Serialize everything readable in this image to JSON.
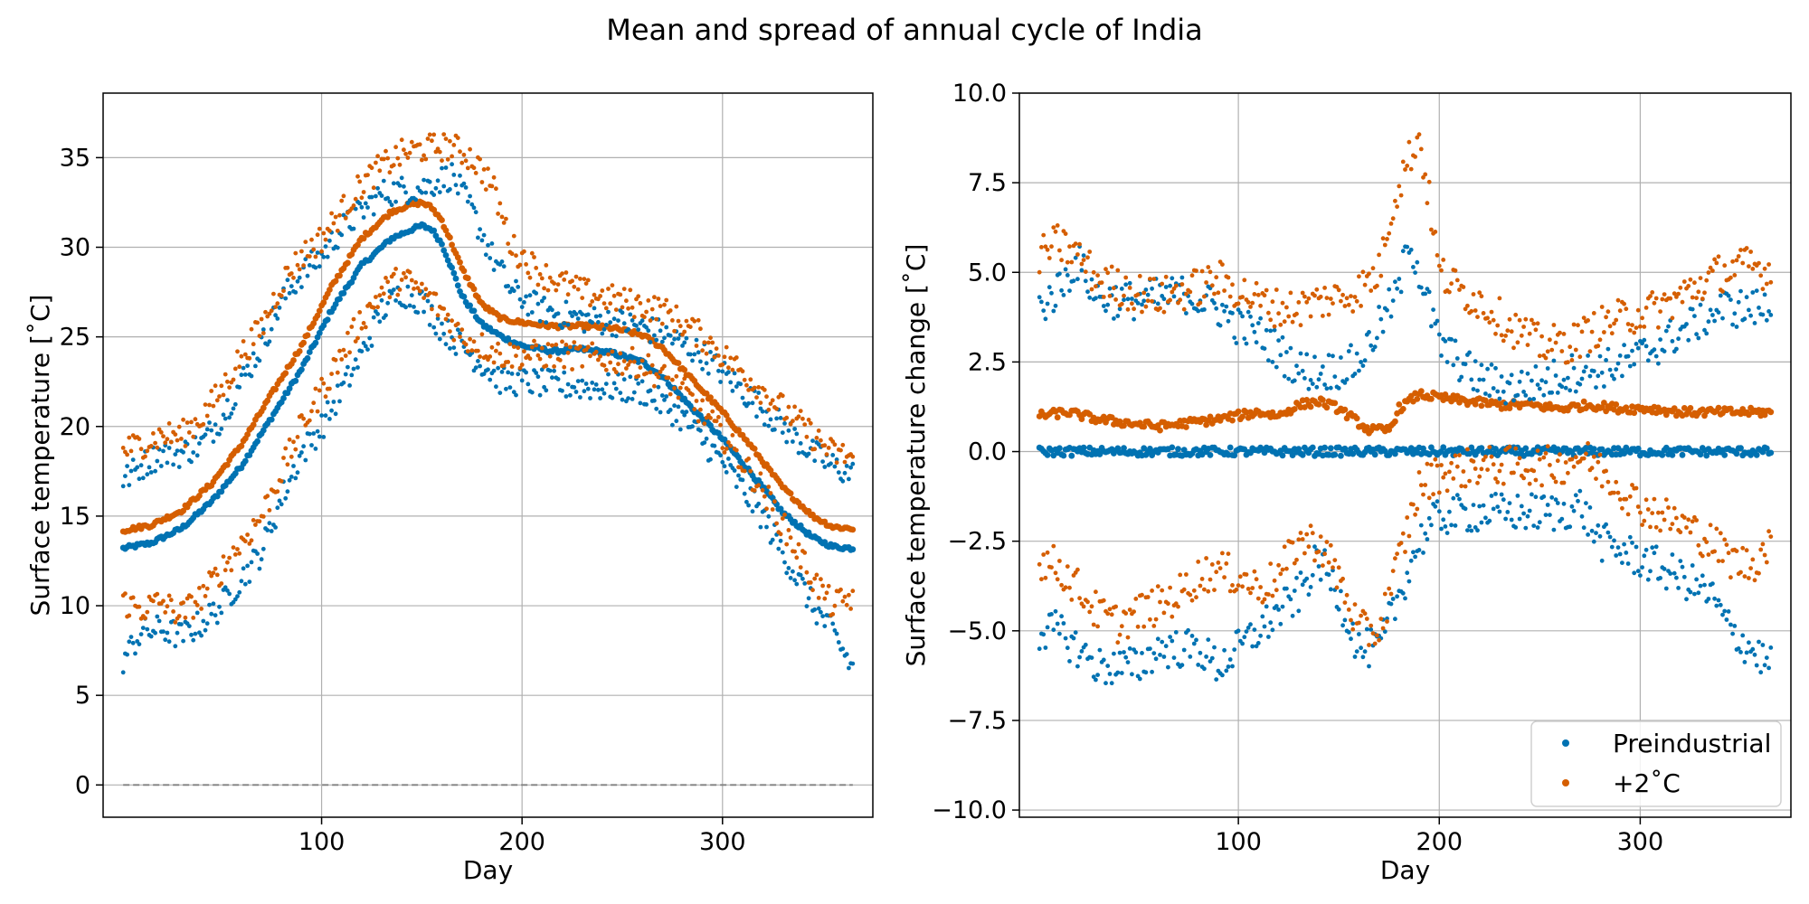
{
  "figure": {
    "title": "Mean and spread of annual cycle of India"
  },
  "colors": {
    "preindustrial": "#0072b2",
    "plus2": "#d55e00",
    "grid": "#b0b0b0",
    "zero_line": "#808080"
  },
  "chart_data": [
    {
      "type": "scatter",
      "panel": "left",
      "title": "",
      "xlabel": "Day",
      "ylabel": "Surface temperature [˚C]",
      "xlim": [
        -9,
        375
      ],
      "ylim": [
        -1.8,
        38.6
      ],
      "xticks": [
        100,
        200,
        300
      ],
      "yticks": [
        0,
        5,
        10,
        15,
        20,
        25,
        30,
        35
      ],
      "grid": true,
      "reference_line": {
        "y": 0,
        "x_range": [
          1,
          365
        ],
        "style": "dashed"
      },
      "series": [
        {
          "name": "Preindustrial",
          "role": "mean",
          "color": "preindustrial",
          "x": [
            1,
            15,
            30,
            45,
            60,
            75,
            90,
            105,
            120,
            135,
            145,
            150,
            155,
            160,
            165,
            170,
            175,
            180,
            190,
            200,
            215,
            230,
            245,
            260,
            270,
            285,
            300,
            315,
            330,
            345,
            355,
            365
          ],
          "y": [
            13.2,
            13.5,
            14.3,
            15.8,
            17.8,
            20.5,
            23.2,
            26.5,
            29.0,
            30.5,
            31.0,
            31.2,
            31.0,
            30.2,
            28.8,
            27.3,
            26.5,
            25.7,
            25.0,
            24.5,
            24.2,
            24.3,
            24.1,
            23.6,
            22.8,
            21.0,
            19.3,
            17.3,
            15.2,
            13.8,
            13.3,
            13.2
          ]
        },
        {
          "name": "+2˚C",
          "role": "mean",
          "color": "plus2",
          "x": [
            1,
            15,
            30,
            45,
            60,
            75,
            90,
            105,
            120,
            135,
            145,
            150,
            155,
            160,
            165,
            170,
            175,
            180,
            190,
            200,
            215,
            230,
            245,
            260,
            270,
            285,
            300,
            315,
            330,
            345,
            355,
            365
          ],
          "y": [
            14.2,
            14.5,
            15.3,
            16.8,
            19.0,
            21.8,
            24.5,
            27.8,
            30.5,
            32.0,
            32.4,
            32.5,
            32.2,
            31.5,
            30.2,
            28.8,
            27.8,
            26.8,
            26.0,
            25.8,
            25.6,
            25.6,
            25.5,
            25.1,
            24.4,
            22.6,
            20.8,
            18.8,
            16.6,
            15.0,
            14.4,
            14.3
          ]
        },
        {
          "name": "Preindustrial",
          "role": "upper",
          "color": "preindustrial",
          "x": [
            1,
            10,
            20,
            30,
            40,
            50,
            60,
            70,
            80,
            90,
            100,
            110,
            120,
            130,
            140,
            150,
            160,
            165,
            175,
            185,
            195,
            210,
            230,
            250,
            270,
            290,
            310,
            330,
            345,
            355,
            365
          ],
          "y": [
            17.0,
            17.8,
            18.5,
            18.5,
            19.0,
            20.5,
            22.5,
            24.5,
            27.0,
            28.5,
            29.5,
            31.0,
            32.0,
            33.0,
            33.2,
            33.3,
            33.8,
            34.0,
            32.0,
            29.5,
            27.5,
            26.5,
            26.0,
            25.8,
            25.2,
            24.0,
            22.0,
            20.0,
            18.5,
            17.8,
            17.3
          ]
        },
        {
          "name": "Preindustrial",
          "role": "lower",
          "color": "preindustrial",
          "x": [
            1,
            10,
            20,
            30,
            40,
            50,
            60,
            70,
            80,
            90,
            100,
            110,
            120,
            130,
            140,
            150,
            160,
            170,
            180,
            190,
            200,
            220,
            240,
            260,
            280,
            300,
            320,
            335,
            345,
            355,
            365
          ],
          "y": [
            7.0,
            8.5,
            8.7,
            8.3,
            9.0,
            10.0,
            11.5,
            13.0,
            16.0,
            18.5,
            20.0,
            22.0,
            24.0,
            26.5,
            27.5,
            27.0,
            25.5,
            24.5,
            23.5,
            22.5,
            22.5,
            22.3,
            22.2,
            22.0,
            20.5,
            18.0,
            15.0,
            12.0,
            10.0,
            8.5,
            6.5
          ]
        },
        {
          "name": "+2˚C",
          "role": "upper",
          "color": "plus2",
          "x": [
            1,
            10,
            20,
            30,
            40,
            50,
            60,
            70,
            80,
            90,
            100,
            110,
            120,
            130,
            140,
            150,
            160,
            165,
            175,
            185,
            195,
            210,
            230,
            250,
            270,
            290,
            310,
            330,
            345,
            355,
            365
          ],
          "y": [
            18.7,
            19.0,
            19.5,
            19.5,
            20.5,
            22.0,
            24.0,
            25.5,
            28.0,
            29.5,
            30.5,
            32.0,
            33.5,
            34.5,
            35.2,
            35.5,
            35.6,
            35.6,
            35.0,
            33.5,
            30.0,
            28.5,
            27.5,
            27.0,
            26.5,
            25.0,
            23.0,
            21.0,
            19.5,
            18.5,
            18.3
          ]
        },
        {
          "name": "+2˚C",
          "role": "lower",
          "color": "plus2",
          "x": [
            1,
            10,
            20,
            30,
            40,
            50,
            60,
            70,
            80,
            90,
            100,
            110,
            120,
            130,
            140,
            150,
            160,
            170,
            180,
            190,
            200,
            220,
            240,
            260,
            280,
            300,
            320,
            335,
            345,
            355,
            365
          ],
          "y": [
            10.2,
            9.8,
            10.2,
            9.5,
            10.5,
            12.0,
            13.5,
            15.0,
            17.5,
            20.0,
            22.0,
            24.0,
            26.0,
            27.5,
            28.3,
            27.5,
            26.5,
            25.0,
            24.5,
            24.0,
            24.0,
            24.0,
            23.8,
            23.5,
            22.0,
            19.5,
            16.5,
            13.5,
            11.5,
            10.0,
            10.5
          ]
        }
      ]
    },
    {
      "type": "scatter",
      "panel": "right",
      "title": "",
      "xlabel": "Day",
      "ylabel": "Surface temperature change [˚C]",
      "xlim": [
        -9,
        375
      ],
      "ylim": [
        -10.2,
        10.0
      ],
      "xticks": [
        100,
        200,
        300
      ],
      "yticks": [
        -10.0,
        -7.5,
        -5.0,
        -2.5,
        0.0,
        2.5,
        5.0,
        7.5,
        10.0
      ],
      "ytick_labels": [
        "−10.0",
        "−7.5",
        "−5.0",
        "−2.5",
        "0.0",
        "2.5",
        "5.0",
        "7.5",
        "10.0"
      ],
      "grid": true,
      "legend": {
        "position": "lower-right",
        "entries": [
          {
            "label": "Preindustrial",
            "color": "preindustrial"
          },
          {
            "label": "+2˚C",
            "color": "plus2"
          }
        ]
      },
      "series": [
        {
          "name": "Preindustrial",
          "role": "mean",
          "color": "preindustrial",
          "x": [
            1,
            365
          ],
          "y": [
            0.0,
            0.0
          ]
        },
        {
          "name": "+2˚C",
          "role": "mean",
          "color": "plus2",
          "x": [
            1,
            15,
            30,
            45,
            60,
            75,
            90,
            100,
            110,
            120,
            130,
            140,
            150,
            160,
            165,
            175,
            180,
            190,
            200,
            215,
            230,
            245,
            260,
            275,
            290,
            305,
            320,
            335,
            350,
            365
          ],
          "y": [
            1.0,
            1.1,
            0.9,
            0.8,
            0.7,
            0.8,
            0.9,
            1.0,
            1.1,
            1.0,
            1.3,
            1.4,
            1.2,
            0.8,
            0.6,
            0.6,
            1.2,
            1.6,
            1.5,
            1.4,
            1.3,
            1.3,
            1.2,
            1.3,
            1.2,
            1.2,
            1.1,
            1.1,
            1.1,
            1.1
          ]
        },
        {
          "name": "Preindustrial",
          "role": "upper",
          "color": "preindustrial",
          "x": [
            1,
            10,
            20,
            30,
            45,
            60,
            75,
            90,
            100,
            110,
            120,
            130,
            140,
            150,
            160,
            170,
            180,
            185,
            190,
            200,
            210,
            220,
            235,
            250,
            265,
            280,
            295,
            310,
            325,
            340,
            355,
            365
          ],
          "y": [
            4.0,
            4.5,
            5.3,
            4.3,
            4.2,
            4.3,
            4.4,
            4.0,
            3.5,
            3.3,
            2.8,
            2.3,
            2.2,
            2.3,
            2.5,
            3.5,
            4.5,
            6.0,
            5.0,
            3.0,
            2.5,
            2.0,
            1.8,
            1.9,
            2.2,
            2.3,
            2.5,
            3.0,
            3.5,
            4.0,
            4.0,
            4.0
          ]
        },
        {
          "name": "Preindustrial",
          "role": "lower",
          "color": "preindustrial",
          "x": [
            1,
            10,
            20,
            30,
            40,
            50,
            60,
            70,
            80,
            90,
            100,
            110,
            120,
            130,
            140,
            150,
            160,
            170,
            180,
            190,
            200,
            220,
            240,
            260,
            270,
            280,
            300,
            320,
            335,
            345,
            355,
            365
          ],
          "y": [
            -5.0,
            -5.0,
            -5.5,
            -6.0,
            -6.0,
            -6.0,
            -5.5,
            -5.5,
            -5.5,
            -6.0,
            -5.5,
            -5.0,
            -4.5,
            -4.0,
            -3.0,
            -4.0,
            -5.5,
            -5.5,
            -4.0,
            -2.5,
            -1.8,
            -1.7,
            -1.7,
            -1.7,
            -1.5,
            -2.5,
            -3.0,
            -3.5,
            -4.0,
            -5.0,
            -5.5,
            -6.0
          ]
        },
        {
          "name": "+2˚C",
          "role": "upper",
          "color": "plus2",
          "x": [
            1,
            10,
            20,
            30,
            45,
            60,
            75,
            90,
            100,
            110,
            120,
            130,
            140,
            150,
            160,
            170,
            175,
            180,
            185,
            190,
            195,
            200,
            210,
            220,
            235,
            250,
            265,
            280,
            295,
            310,
            325,
            340,
            355,
            365
          ],
          "y": [
            5.5,
            5.8,
            5.5,
            4.8,
            4.5,
            4.3,
            4.5,
            4.8,
            4.5,
            4.2,
            4.0,
            4.0,
            4.2,
            4.3,
            4.5,
            5.0,
            6.5,
            7.5,
            8.2,
            8.8,
            7.0,
            5.0,
            4.5,
            4.2,
            3.5,
            3.0,
            3.0,
            3.5,
            3.8,
            4.0,
            4.5,
            5.0,
            5.2,
            5.0
          ]
        },
        {
          "name": "+2˚C",
          "role": "lower",
          "color": "plus2",
          "x": [
            1,
            10,
            20,
            30,
            40,
            50,
            60,
            70,
            80,
            90,
            100,
            110,
            120,
            130,
            140,
            150,
            160,
            170,
            180,
            190,
            200,
            220,
            240,
            260,
            270,
            280,
            300,
            320,
            335,
            345,
            355,
            365
          ],
          "y": [
            -3.0,
            -3.2,
            -3.8,
            -4.5,
            -4.8,
            -4.5,
            -4.3,
            -4.0,
            -3.5,
            -3.3,
            -3.5,
            -3.8,
            -3.5,
            -2.5,
            -2.5,
            -3.5,
            -5.0,
            -5.0,
            -3.0,
            -1.0,
            -0.6,
            -0.4,
            -0.4,
            -0.4,
            -0.1,
            -0.5,
            -1.5,
            -2.0,
            -2.5,
            -3.0,
            -3.2,
            -2.5
          ]
        }
      ]
    }
  ]
}
